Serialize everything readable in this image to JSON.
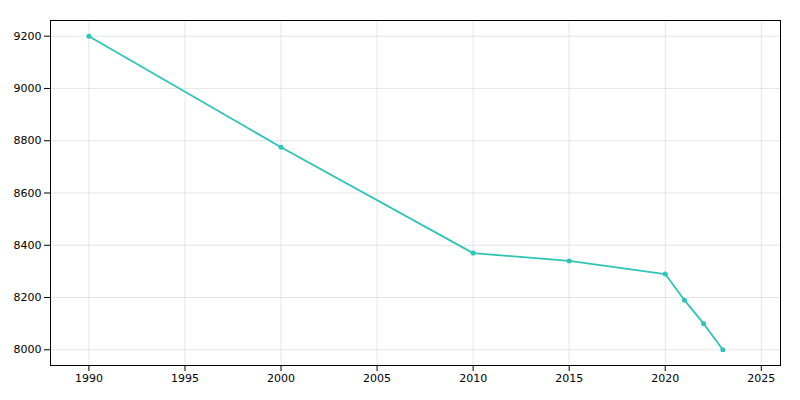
{
  "chart_data": {
    "type": "line",
    "x": [
      1990,
      2000,
      2010,
      2015,
      2020,
      2021,
      2022,
      2023
    ],
    "values": [
      9200,
      8775,
      8370,
      8340,
      8290,
      8190,
      8100,
      8000
    ],
    "color": "#2ec4b6",
    "marker": "circle",
    "xlim": [
      1988,
      2026
    ],
    "xticks": [
      1990,
      1995,
      2000,
      2005,
      2010,
      2015,
      2020,
      2025
    ],
    "ylim": [
      7940,
      9260
    ],
    "yticks": [
      8000,
      8200,
      8400,
      8600,
      8800,
      9000,
      9200
    ],
    "grid": true
  }
}
